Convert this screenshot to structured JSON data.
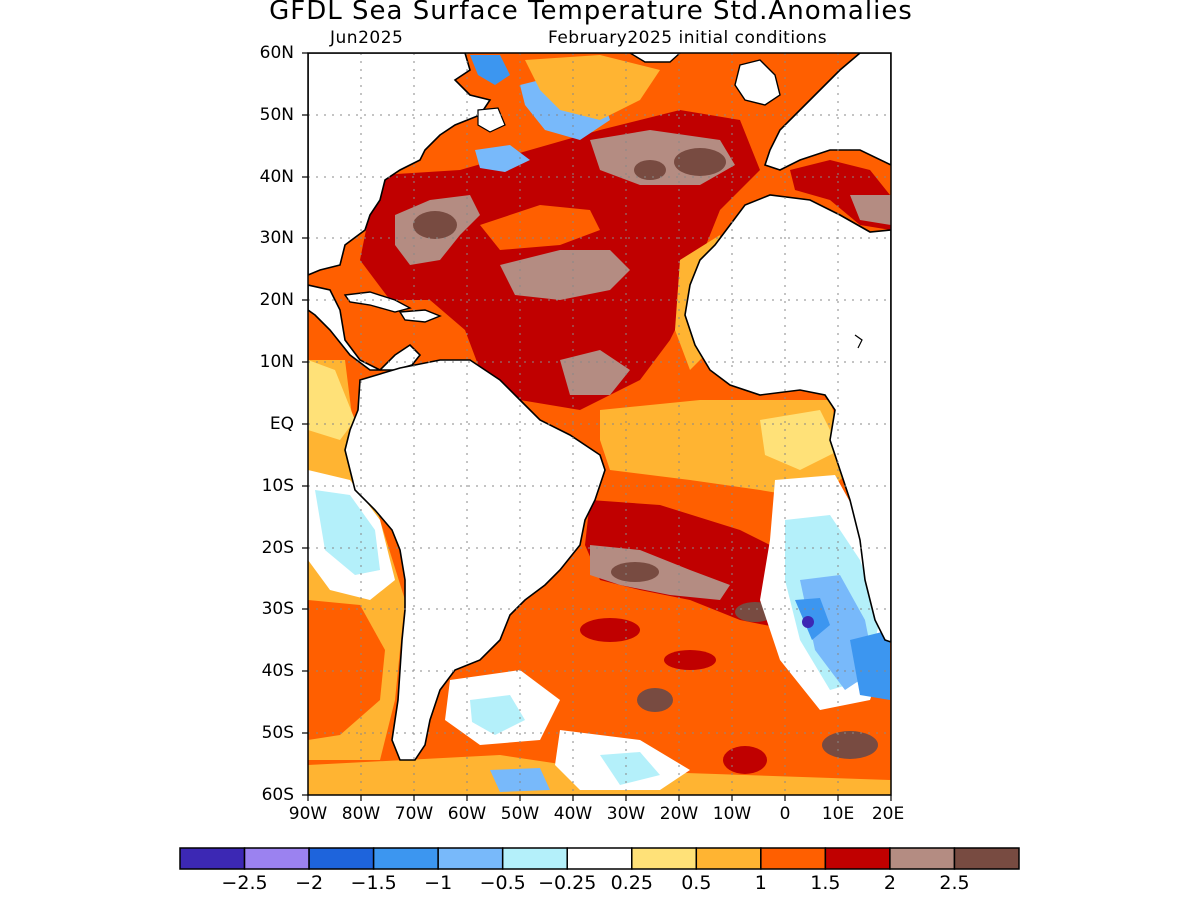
{
  "header": {
    "title": "GFDL Sea Surface Temperature Std.Anomalies",
    "target_month": "Jun2025",
    "initial_conditions": "February2025 initial conditions"
  },
  "axes": {
    "lat_labels": [
      "60N",
      "50N",
      "40N",
      "30N",
      "20N",
      "10N",
      "EQ",
      "10S",
      "20S",
      "30S",
      "40S",
      "50S",
      "60S"
    ],
    "lon_labels": [
      "90W",
      "80W",
      "70W",
      "60W",
      "50W",
      "40W",
      "30W",
      "20W",
      "10W",
      "0",
      "10E",
      "20E"
    ]
  },
  "colorbar": {
    "colors": [
      "#3c28b4",
      "#9b82f0",
      "#1e64dc",
      "#3c96f0",
      "#78b9fa",
      "#b4f0fa",
      "#ffffff",
      "#ffe178",
      "#ffb432",
      "#ff5f00",
      "#c00000",
      "#b48c82",
      "#784b41"
    ],
    "labels": [
      "−2.5",
      "−2",
      "−1.5",
      "−1",
      "−0.5",
      "−0.25",
      "0.25",
      "0.5",
      "1",
      "1.5",
      "2",
      "2.5"
    ]
  },
  "legend": {
    "levels": [
      "<−2.5",
      "−2.5–−2",
      "−2–−1.5",
      "−1.5–−1",
      "−1–−0.5",
      "−0.5–−0.25",
      "−0.25–0.25",
      "0.25–0.5",
      "0.5–1",
      "1–1.5",
      "1.5–2",
      "2–2.5",
      ">2.5"
    ]
  }
}
